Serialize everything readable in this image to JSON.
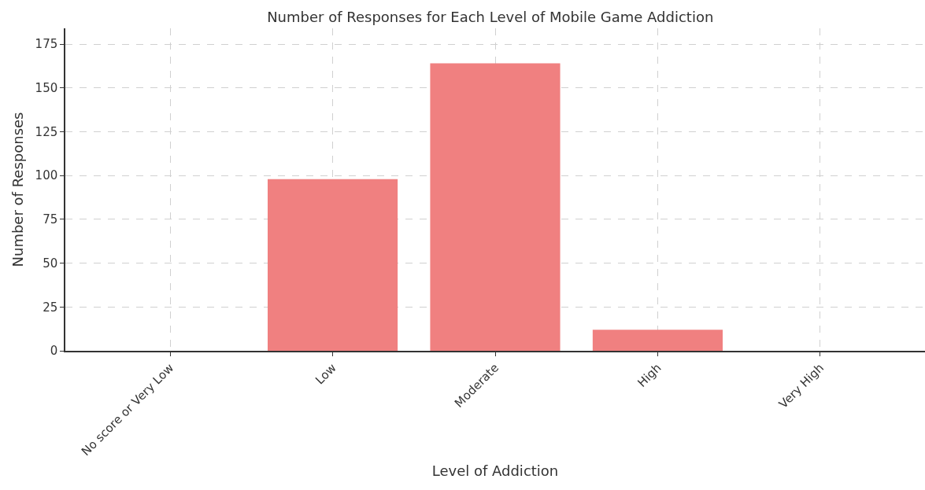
{
  "chart_data": {
    "type": "bar",
    "title": "Number of Responses for Each Level of Mobile Game Addiction",
    "xlabel": "Level of Addiction",
    "ylabel": "Number of Responses",
    "categories": [
      "No score or Very Low",
      "Low",
      "Moderate",
      "High",
      "Very High"
    ],
    "values": [
      0,
      98,
      164,
      12,
      0
    ],
    "color": "#f08080",
    "ylim": [
      0,
      184
    ],
    "yticks": [
      0,
      25,
      50,
      75,
      100,
      125,
      150,
      175
    ],
    "grid": true
  }
}
